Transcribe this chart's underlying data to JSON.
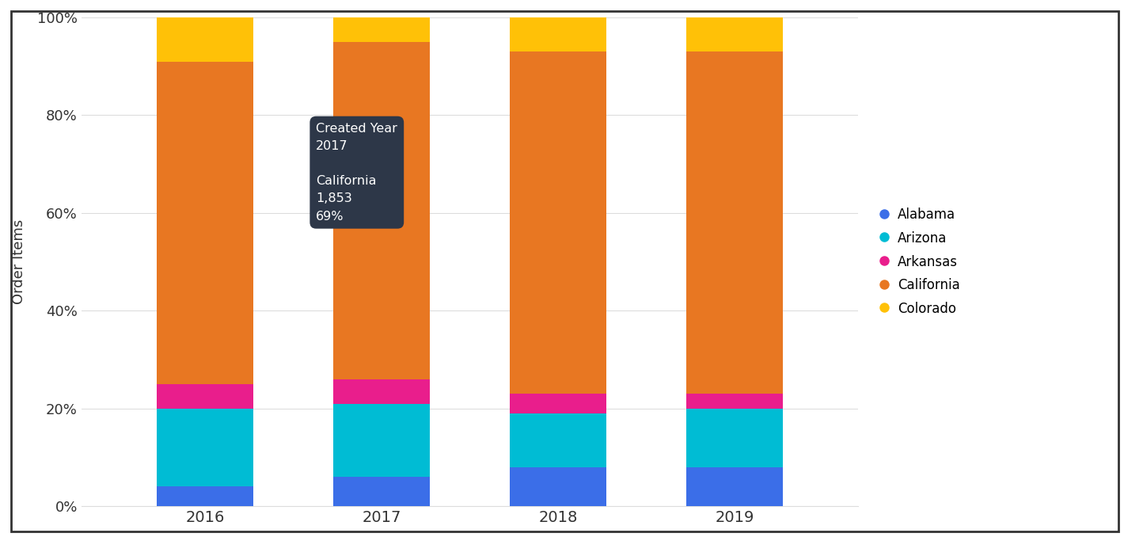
{
  "years": [
    2016,
    2017,
    2018,
    2019
  ],
  "states": [
    "Alabama",
    "Arizona",
    "Arkansas",
    "California",
    "Colorado"
  ],
  "colors": [
    "#3B6EE8",
    "#00BCD4",
    "#E91E8C",
    "#E87722",
    "#FFC107"
  ],
  "data": {
    "Alabama": [
      0.04,
      0.06,
      0.08,
      0.08
    ],
    "Arizona": [
      0.16,
      0.15,
      0.11,
      0.12
    ],
    "Arkansas": [
      0.05,
      0.05,
      0.04,
      0.03
    ],
    "California": [
      0.66,
      0.69,
      0.7,
      0.7
    ],
    "Colorado": [
      0.09,
      0.05,
      0.07,
      0.07
    ]
  },
  "ylabel": "Order Items",
  "yticks": [
    0.0,
    0.2,
    0.4,
    0.6,
    0.8,
    1.0
  ],
  "ytick_labels": [
    "0%",
    "20%",
    "40%",
    "60%",
    "80%",
    "100%"
  ],
  "bar_width": 0.55,
  "background_color": "#FFFFFF",
  "chart_bg": "#FFFFFF",
  "grid_color": "#DDDDDD",
  "border_color": "#333333",
  "tooltip": {
    "title_label": "Created Year",
    "title_value": "2017",
    "series_label": "California",
    "value": "1,853",
    "pct": "69%",
    "bg_color": "#2D3748",
    "text_color": "#FFFFFF"
  }
}
